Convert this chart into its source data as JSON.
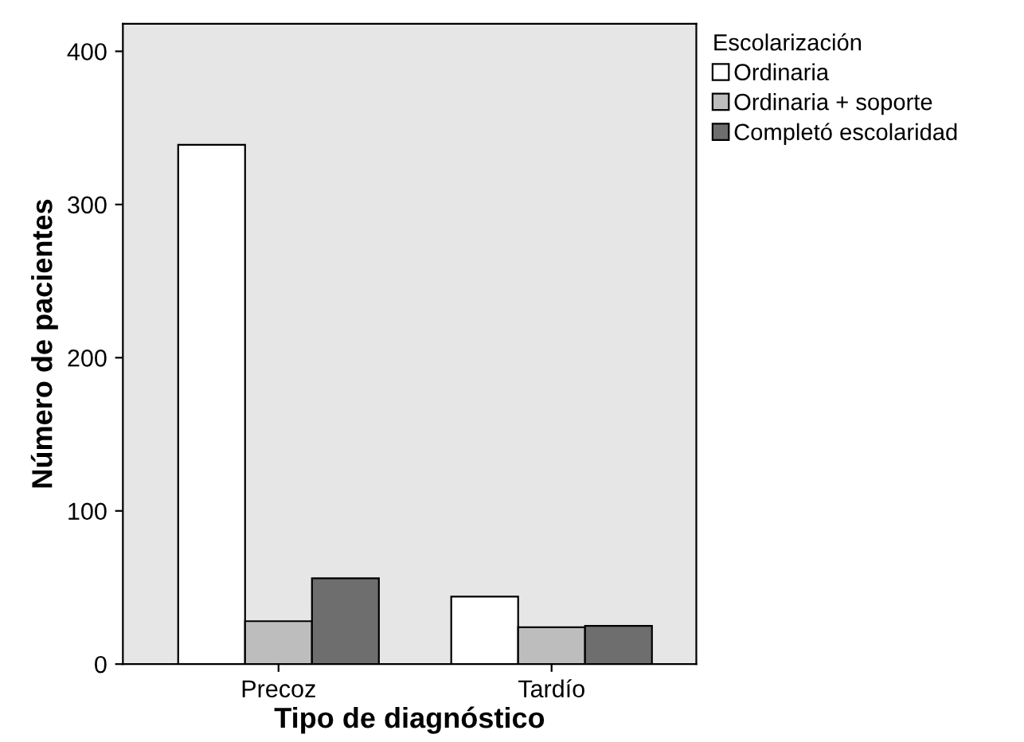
{
  "chart_data": {
    "type": "bar",
    "xlabel": "Tipo de diagnóstico",
    "ylabel": "Número de pacientes",
    "legend_title": "Escolarización",
    "categories": [
      "Precoz",
      "Tardío"
    ],
    "series": [
      {
        "name": "Ordinaria",
        "color": "#ffffff",
        "values": [
          339,
          44
        ]
      },
      {
        "name": "Ordinaria + soporte",
        "color": "#bdbdbd",
        "values": [
          28,
          24
        ]
      },
      {
        "name": "Completó escolaridad",
        "color": "#6e6e6e",
        "values": [
          56,
          25
        ]
      }
    ],
    "ylim": [
      0,
      418
    ],
    "yticks": [
      0,
      100,
      200,
      300,
      400
    ],
    "grid": false,
    "legend": "top right"
  }
}
